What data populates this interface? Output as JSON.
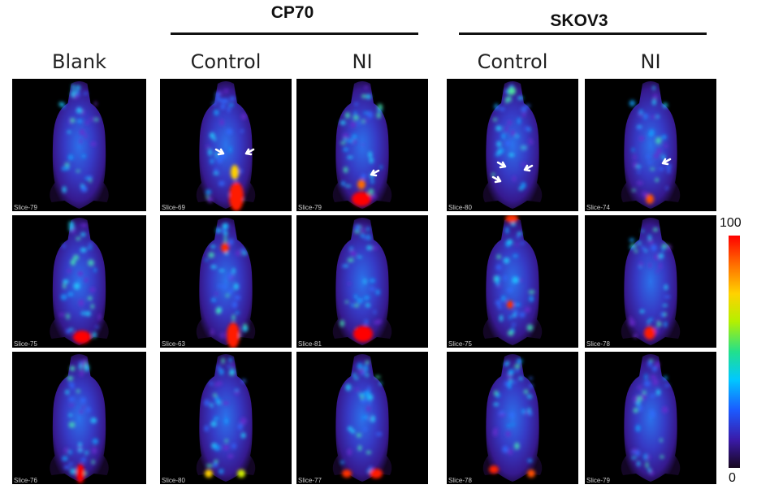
{
  "groups": [
    {
      "title": "CP70"
    },
    {
      "title": "SKOV3"
    }
  ],
  "columns": [
    {
      "label": "Blank"
    },
    {
      "label": "Control"
    },
    {
      "label": "NI"
    },
    {
      "label": "Control"
    },
    {
      "label": "NI"
    }
  ],
  "panels": [
    [
      "Slice-79",
      "Slice-69",
      "Slice-79",
      "Slice-80",
      "Slice-74"
    ],
    [
      "Slice-75",
      "Slice-63",
      "Slice-81",
      "Slice-75",
      "Slice-78"
    ],
    [
      "Slice-76",
      "Slice-80",
      "Slice-77",
      "Slice-78",
      "Slice-79"
    ]
  ],
  "colorbar": {
    "max": "100",
    "min": "0"
  },
  "colors": {
    "background": "#000000",
    "arrow": "#ffffff"
  }
}
